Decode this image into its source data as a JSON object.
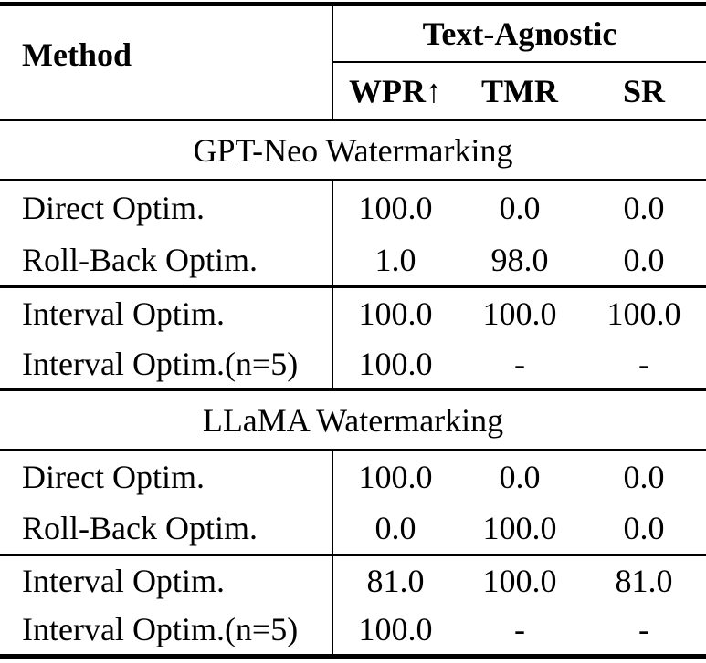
{
  "table": {
    "header": {
      "method_label": "Method",
      "group_label": "Text-Agnostic",
      "sub_labels": [
        "WPR↑",
        "TMR",
        "SR"
      ]
    },
    "sections": [
      {
        "title": "GPT-Neo Watermarking",
        "blocks": [
          {
            "rows": [
              {
                "method": "Direct Optim.",
                "values": [
                  "100.0",
                  "0.0",
                  "0.0"
                ]
              },
              {
                "method": "Roll-Back Optim.",
                "values": [
                  "1.0",
                  "98.0",
                  "0.0"
                ]
              }
            ]
          },
          {
            "rows": [
              {
                "method": "Interval Optim.",
                "values": [
                  "100.0",
                  "100.0",
                  "100.0"
                ]
              },
              {
                "method": "Interval Optim.(n=5)",
                "values": [
                  "100.0",
                  "-",
                  "-"
                ]
              }
            ]
          }
        ]
      },
      {
        "title": "LLaMA Watermarking",
        "blocks": [
          {
            "rows": [
              {
                "method": "Direct Optim.",
                "values": [
                  "100.0",
                  "0.0",
                  "0.0"
                ]
              },
              {
                "method": "Roll-Back Optim.",
                "values": [
                  "0.0",
                  "100.0",
                  "0.0"
                ]
              }
            ]
          },
          {
            "rows": [
              {
                "method": "Interval Optim.",
                "values": [
                  "81.0",
                  "100.0",
                  "81.0"
                ]
              },
              {
                "method": "Interval Optim.(n=5)",
                "values": [
                  "100.0",
                  "-",
                  "-"
                ]
              }
            ]
          }
        ]
      }
    ],
    "colors": {
      "text": "#000000",
      "background": "#ffffff",
      "rule": "#000000"
    }
  }
}
